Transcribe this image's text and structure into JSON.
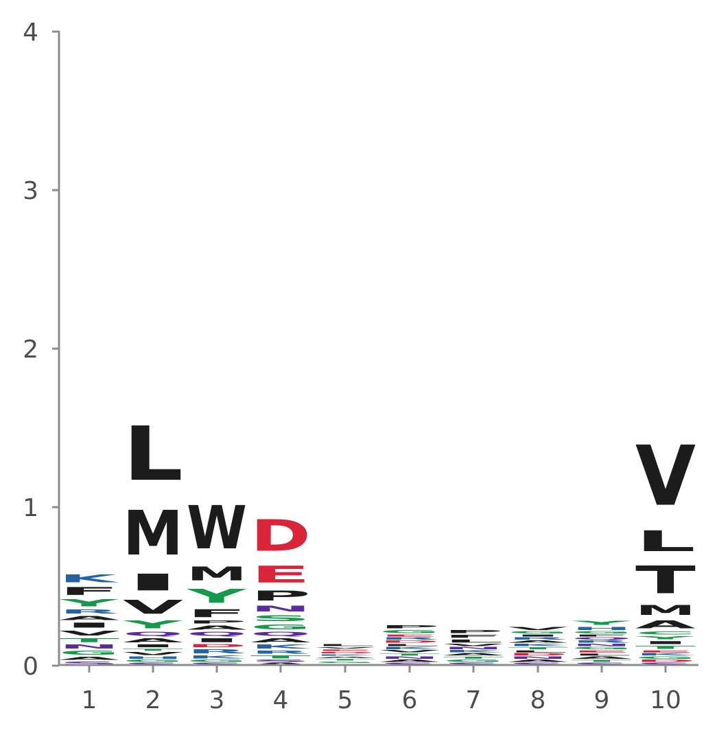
{
  "chart_data": {
    "type": "sequence-logo",
    "ylim": [
      0,
      4
    ],
    "y_ticks": [
      "0",
      "1",
      "2",
      "3",
      "4"
    ],
    "positions": [
      "1",
      "2",
      "3",
      "4",
      "5",
      "6",
      "7",
      "8",
      "9",
      "10"
    ],
    "colors": {
      "black": "#1c1c1c",
      "blue": "#2464a4",
      "green": "#16994a",
      "purple": "#5b2c9f",
      "red": "#d9243a",
      "axis": "#8c8c8c",
      "tick_text": "#4d4d4d"
    },
    "stacks": [
      [
        {
          "letter": "S",
          "height": 0.03,
          "color": "purple"
        },
        {
          "letter": "A",
          "height": 0.03,
          "color": "black"
        },
        {
          "letter": "G",
          "height": 0.04,
          "color": "green"
        },
        {
          "letter": "N",
          "height": 0.04,
          "color": "purple"
        },
        {
          "letter": "T",
          "height": 0.04,
          "color": "green"
        },
        {
          "letter": "V",
          "height": 0.05,
          "color": "black"
        },
        {
          "letter": "I",
          "height": 0.05,
          "color": "black"
        },
        {
          "letter": "A",
          "height": 0.04,
          "color": "black"
        },
        {
          "letter": "R",
          "height": 0.04,
          "color": "blue"
        },
        {
          "letter": "Y",
          "height": 0.07,
          "color": "green"
        },
        {
          "letter": "F",
          "height": 0.08,
          "color": "black"
        },
        {
          "letter": "K",
          "height": 0.08,
          "color": "blue"
        }
      ],
      [
        {
          "letter": "S",
          "height": 0.02,
          "color": "purple"
        },
        {
          "letter": "G",
          "height": 0.02,
          "color": "green"
        },
        {
          "letter": "H",
          "height": 0.02,
          "color": "blue"
        },
        {
          "letter": "V",
          "height": 0.03,
          "color": "black"
        },
        {
          "letter": "T",
          "height": 0.02,
          "color": "green"
        },
        {
          "letter": "I",
          "height": 0.03,
          "color": "black"
        },
        {
          "letter": "A",
          "height": 0.04,
          "color": "black"
        },
        {
          "letter": "Q",
          "height": 0.04,
          "color": "purple"
        },
        {
          "letter": "Y",
          "height": 0.08,
          "color": "green"
        },
        {
          "letter": "V",
          "height": 0.14,
          "color": "black"
        },
        {
          "letter": "I",
          "height": 0.17,
          "color": "black"
        },
        {
          "letter": "M",
          "height": 0.45,
          "color": "black"
        },
        {
          "letter": "L",
          "height": 0.55,
          "color": "black"
        }
      ],
      [
        {
          "letter": "S",
          "height": 0.02,
          "color": "purple"
        },
        {
          "letter": "G",
          "height": 0.02,
          "color": "green"
        },
        {
          "letter": "K",
          "height": 0.03,
          "color": "blue"
        },
        {
          "letter": "R",
          "height": 0.04,
          "color": "blue"
        },
        {
          "letter": "D",
          "height": 0.03,
          "color": "red"
        },
        {
          "letter": "I",
          "height": 0.04,
          "color": "black"
        },
        {
          "letter": "Q",
          "height": 0.04,
          "color": "purple"
        },
        {
          "letter": "A",
          "height": 0.04,
          "color": "black"
        },
        {
          "letter": "P",
          "height": 0.03,
          "color": "black"
        },
        {
          "letter": "F",
          "height": 0.08,
          "color": "black"
        },
        {
          "letter": "Y",
          "height": 0.14,
          "color": "green"
        },
        {
          "letter": "M",
          "height": 0.14,
          "color": "black"
        },
        {
          "letter": "W",
          "height": 0.44,
          "color": "black"
        }
      ],
      [
        {
          "letter": "A",
          "height": 0.02,
          "color": "black"
        },
        {
          "letter": "S",
          "height": 0.02,
          "color": "purple"
        },
        {
          "letter": "T",
          "height": 0.03,
          "color": "green"
        },
        {
          "letter": "R",
          "height": 0.03,
          "color": "blue"
        },
        {
          "letter": "K",
          "height": 0.04,
          "color": "blue"
        },
        {
          "letter": "A",
          "height": 0.04,
          "color": "black"
        },
        {
          "letter": "Q",
          "height": 0.04,
          "color": "purple"
        },
        {
          "letter": "G",
          "height": 0.05,
          "color": "green"
        },
        {
          "letter": "S",
          "height": 0.06,
          "color": "green"
        },
        {
          "letter": "N",
          "height": 0.06,
          "color": "purple"
        },
        {
          "letter": "P",
          "height": 0.1,
          "color": "black"
        },
        {
          "letter": "E",
          "height": 0.17,
          "color": "red"
        },
        {
          "letter": "D",
          "height": 0.32,
          "color": "red"
        }
      ],
      [
        {
          "letter": "S",
          "height": 0.015,
          "color": "purple"
        },
        {
          "letter": "G",
          "height": 0.015,
          "color": "green"
        },
        {
          "letter": "T",
          "height": 0.015,
          "color": "green"
        },
        {
          "letter": "A",
          "height": 0.015,
          "color": "black"
        },
        {
          "letter": "K",
          "height": 0.015,
          "color": "blue"
        },
        {
          "letter": "D",
          "height": 0.015,
          "color": "red"
        },
        {
          "letter": "E",
          "height": 0.015,
          "color": "red"
        },
        {
          "letter": "V",
          "height": 0.015,
          "color": "black"
        },
        {
          "letter": "L",
          "height": 0.02,
          "color": "black"
        }
      ],
      [
        {
          "letter": "S",
          "height": 0.02,
          "color": "purple"
        },
        {
          "letter": "A",
          "height": 0.02,
          "color": "black"
        },
        {
          "letter": "N",
          "height": 0.02,
          "color": "purple"
        },
        {
          "letter": "T",
          "height": 0.02,
          "color": "green"
        },
        {
          "letter": "V",
          "height": 0.02,
          "color": "black"
        },
        {
          "letter": "K",
          "height": 0.02,
          "color": "blue"
        },
        {
          "letter": "L",
          "height": 0.02,
          "color": "black"
        },
        {
          "letter": "D",
          "height": 0.02,
          "color": "red"
        },
        {
          "letter": "R",
          "height": 0.02,
          "color": "blue"
        },
        {
          "letter": "E",
          "height": 0.02,
          "color": "red"
        },
        {
          "letter": "G",
          "height": 0.03,
          "color": "green"
        },
        {
          "letter": "P",
          "height": 0.03,
          "color": "black"
        }
      ],
      [
        {
          "letter": "S",
          "height": 0.02,
          "color": "purple"
        },
        {
          "letter": "G",
          "height": 0.02,
          "color": "green"
        },
        {
          "letter": "T",
          "height": 0.02,
          "color": "green"
        },
        {
          "letter": "A",
          "height": 0.02,
          "color": "black"
        },
        {
          "letter": "K",
          "height": 0.02,
          "color": "blue"
        },
        {
          "letter": "N",
          "height": 0.02,
          "color": "purple"
        },
        {
          "letter": "V",
          "height": 0.02,
          "color": "black"
        },
        {
          "letter": "L",
          "height": 0.03,
          "color": "black"
        },
        {
          "letter": "F",
          "height": 0.03,
          "color": "black"
        },
        {
          "letter": "P",
          "height": 0.03,
          "color": "black"
        }
      ],
      [
        {
          "letter": "S",
          "height": 0.02,
          "color": "purple"
        },
        {
          "letter": "A",
          "height": 0.02,
          "color": "black"
        },
        {
          "letter": "N",
          "height": 0.02,
          "color": "purple"
        },
        {
          "letter": "D",
          "height": 0.02,
          "color": "red"
        },
        {
          "letter": "L",
          "height": 0.02,
          "color": "black"
        },
        {
          "letter": "T",
          "height": 0.02,
          "color": "green"
        },
        {
          "letter": "K",
          "height": 0.02,
          "color": "blue"
        },
        {
          "letter": "A",
          "height": 0.02,
          "color": "black"
        },
        {
          "letter": "R",
          "height": 0.02,
          "color": "blue"
        },
        {
          "letter": "I",
          "height": 0.02,
          "color": "black"
        },
        {
          "letter": "G",
          "height": 0.02,
          "color": "green"
        },
        {
          "letter": "V",
          "height": 0.03,
          "color": "black"
        }
      ],
      [
        {
          "letter": "S",
          "height": 0.02,
          "color": "purple"
        },
        {
          "letter": "T",
          "height": 0.02,
          "color": "green"
        },
        {
          "letter": "A",
          "height": 0.02,
          "color": "black"
        },
        {
          "letter": "L",
          "height": 0.02,
          "color": "black"
        },
        {
          "letter": "E",
          "height": 0.02,
          "color": "red"
        },
        {
          "letter": "G",
          "height": 0.02,
          "color": "green"
        },
        {
          "letter": "N",
          "height": 0.02,
          "color": "purple"
        },
        {
          "letter": "R",
          "height": 0.02,
          "color": "blue"
        },
        {
          "letter": "Q",
          "height": 0.02,
          "color": "purple"
        },
        {
          "letter": "F",
          "height": 0.02,
          "color": "black"
        },
        {
          "letter": "G",
          "height": 0.02,
          "color": "green"
        },
        {
          "letter": "H",
          "height": 0.03,
          "color": "blue"
        },
        {
          "letter": "Y",
          "height": 0.04,
          "color": "green"
        }
      ],
      [
        {
          "letter": "S",
          "height": 0.02,
          "color": "purple"
        },
        {
          "letter": "D",
          "height": 0.02,
          "color": "red"
        },
        {
          "letter": "G",
          "height": 0.02,
          "color": "green"
        },
        {
          "letter": "K",
          "height": 0.02,
          "color": "blue"
        },
        {
          "letter": "E",
          "height": 0.02,
          "color": "red"
        },
        {
          "letter": "T",
          "height": 0.03,
          "color": "green"
        },
        {
          "letter": "I",
          "height": 0.03,
          "color": "black"
        },
        {
          "letter": "Y",
          "height": 0.03,
          "color": "green"
        },
        {
          "letter": "C",
          "height": 0.03,
          "color": "green"
        },
        {
          "letter": "A",
          "height": 0.08,
          "color": "black"
        },
        {
          "letter": "M",
          "height": 0.1,
          "color": "black"
        },
        {
          "letter": "T",
          "height": 0.28,
          "color": "black"
        },
        {
          "letter": "L",
          "height": 0.21,
          "color": "black"
        },
        {
          "letter": "V",
          "height": 0.61,
          "color": "black"
        }
      ]
    ]
  }
}
